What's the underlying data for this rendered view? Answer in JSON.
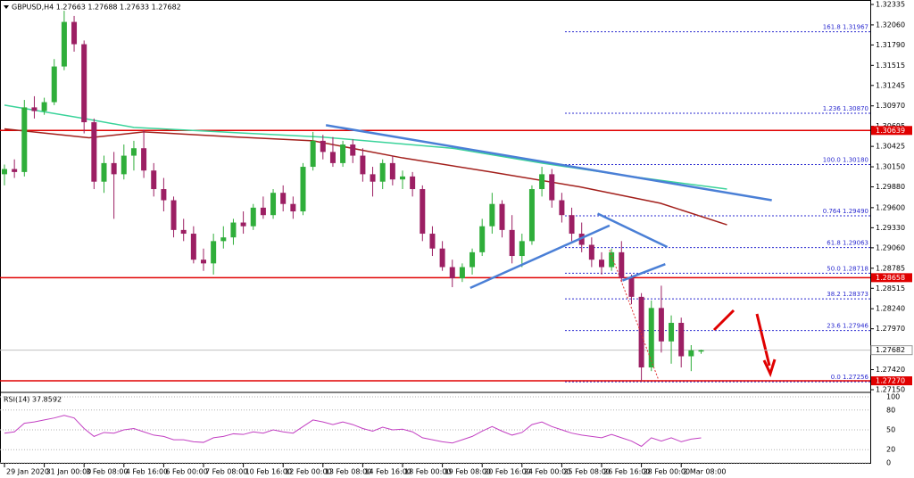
{
  "chart_data": {
    "type": "candlestick",
    "title": "GBPUSD,H4  1.27663 1.27688 1.27633 1.27682",
    "categories": [
      "29 Jan 2020",
      null,
      null,
      null,
      "31 Jan 00:00",
      null,
      null,
      null,
      "3 Feb 08:00",
      null,
      null,
      null,
      "4 Feb 16:00",
      null,
      null,
      null,
      "6 Feb 00:00",
      null,
      null,
      null,
      "7 Feb 08:00",
      null,
      null,
      null,
      "10 Feb 16:00",
      null,
      null,
      null,
      "12 Feb 00:00",
      null,
      null,
      null,
      "13 Feb 08:00",
      null,
      null,
      null,
      "14 Feb 16:00",
      null,
      null,
      null,
      "18 Feb 00:00",
      null,
      null,
      null,
      "19 Feb 08:00",
      null,
      null,
      null,
      "20 Feb 16:00",
      null,
      null,
      null,
      "24 Feb 00:00",
      null,
      null,
      null,
      "25 Feb 08:00",
      null,
      null,
      null,
      "26 Feb 16:00",
      null,
      null,
      null,
      "28 Feb 00:00",
      null,
      null,
      null,
      "2 Mar 08:00",
      null,
      null
    ],
    "open": [
      1.3005,
      1.3012,
      1.3008,
      1.3095,
      1.309,
      1.3102,
      1.315,
      1.321,
      1.318,
      1.3075,
      1.2995,
      1.302,
      1.3005,
      1.303,
      1.304,
      1.301,
      1.2985,
      1.297,
      1.293,
      1.2925,
      1.289,
      1.2885,
      1.2915,
      1.292,
      1.294,
      1.2935,
      1.296,
      1.295,
      1.298,
      1.2965,
      1.2955,
      1.3015,
      1.305,
      1.3035,
      1.302,
      1.3045,
      1.303,
      1.3005,
      1.2995,
      1.302,
      1.2998,
      1.3002,
      1.2985,
      1.2925,
      1.2905,
      1.288,
      1.2865,
      1.288,
      1.29,
      1.2935,
      1.2965,
      1.293,
      1.2895,
      1.2915,
      1.2985,
      1.3005,
      1.297,
      1.295,
      1.2925,
      1.291,
      1.289,
      1.288,
      1.29,
      1.2865,
      1.284,
      1.2745,
      1.2825,
      1.278,
      1.2805,
      1.276,
      1.27663
    ],
    "high": [
      1.3018,
      1.3025,
      1.3105,
      1.311,
      1.3108,
      1.316,
      1.3225,
      1.3218,
      1.3185,
      1.308,
      1.303,
      1.3035,
      1.3045,
      1.305,
      1.3065,
      1.302,
      1.3,
      1.2975,
      1.2945,
      1.2935,
      1.2905,
      1.2925,
      1.2935,
      1.2945,
      1.2955,
      1.2965,
      1.2975,
      1.2985,
      1.299,
      1.2975,
      1.302,
      1.3062,
      1.3058,
      1.3055,
      1.305,
      1.3052,
      1.304,
      1.3015,
      1.3025,
      1.303,
      1.301,
      1.3008,
      1.299,
      1.2935,
      1.2915,
      1.289,
      1.2885,
      1.2905,
      1.2945,
      1.298,
      1.297,
      1.295,
      1.2925,
      1.299,
      1.3015,
      1.3012,
      1.298,
      1.296,
      1.294,
      1.292,
      1.29,
      1.2905,
      1.2915,
      1.287,
      1.2845,
      1.2835,
      1.2855,
      1.2815,
      1.2812,
      1.2775,
      1.27688
    ],
    "low": [
      1.299,
      1.3,
      1.3002,
      1.308,
      1.3085,
      1.3098,
      1.3145,
      1.317,
      1.306,
      1.2985,
      1.298,
      1.2945,
      1.2998,
      1.301,
      1.3,
      1.2975,
      1.2955,
      1.292,
      1.2915,
      1.2885,
      1.2875,
      1.287,
      1.2905,
      1.291,
      1.2925,
      1.293,
      1.2945,
      1.2945,
      1.2955,
      1.2945,
      1.295,
      1.301,
      1.3025,
      1.3015,
      1.3015,
      1.302,
      1.2995,
      1.2975,
      1.2985,
      1.299,
      1.2985,
      1.2975,
      1.2915,
      1.2895,
      1.2875,
      1.2853,
      1.286,
      1.287,
      1.2895,
      1.2925,
      1.292,
      1.2885,
      1.288,
      1.291,
      1.2975,
      1.296,
      1.294,
      1.2915,
      1.29,
      1.288,
      1.287,
      1.2875,
      1.286,
      1.283,
      1.2727,
      1.274,
      1.2765,
      1.275,
      1.2745,
      1.274,
      1.27633
    ],
    "close": [
      1.3012,
      1.3008,
      1.3095,
      1.309,
      1.3102,
      1.315,
      1.321,
      1.318,
      1.3075,
      1.2995,
      1.302,
      1.3005,
      1.303,
      1.304,
      1.301,
      1.2985,
      1.297,
      1.293,
      1.2925,
      1.289,
      1.2885,
      1.2915,
      1.292,
      1.294,
      1.2935,
      1.296,
      1.295,
      1.298,
      1.2965,
      1.2955,
      1.3015,
      1.305,
      1.3035,
      1.302,
      1.3045,
      1.303,
      1.3005,
      1.2995,
      1.302,
      1.2998,
      1.3002,
      1.2985,
      1.2925,
      1.2905,
      1.288,
      1.2865,
      1.288,
      1.29,
      1.2935,
      1.2965,
      1.293,
      1.2895,
      1.2915,
      1.2985,
      1.3005,
      1.297,
      1.295,
      1.2925,
      1.291,
      1.289,
      1.288,
      1.29,
      1.2865,
      1.284,
      1.2745,
      1.2825,
      1.278,
      1.2805,
      1.276,
      1.2768,
      1.27682
    ],
    "up_color": "#2fae3a",
    "down_color": "#9c1f63",
    "ylim": [
      1.27114,
      1.32395
    ],
    "yticks": [
      1.32335,
      {
        "value": 1.3206,
        "label": "1.32060"
      },
      {
        "value": 1.3179,
        "label": "1.31790"
      },
      1.31515,
      1.31245,
      {
        "value": 1.3097,
        "label": "1.30970"
      },
      1.30695,
      1.30425,
      {
        "value": 1.3015,
        "label": "1.30150"
      },
      {
        "value": 1.2988,
        "label": "1.29880"
      },
      {
        "value": 1.296,
        "label": "1.29600"
      },
      {
        "value": 1.2933,
        "label": "1.29330"
      },
      {
        "value": 1.2906,
        "label": "1.29060"
      },
      1.28785,
      1.28515,
      {
        "value": 1.2824,
        "label": "1.28240"
      },
      {
        "value": 1.2797,
        "label": "1.27970"
      },
      1.27695,
      {
        "value": 1.2742,
        "label": "1.27420"
      },
      {
        "value": 1.2715,
        "label": "1.27150"
      }
    ],
    "moving_averages": [
      {
        "color": "#3ad39a",
        "x": [
          0,
          8,
          13,
          32,
          45,
          54,
          63,
          72.6
        ],
        "values": [
          1.3098,
          1.308,
          1.3068,
          1.3055,
          1.304,
          1.302,
          1.3002,
          1.2985
        ]
      },
      {
        "color": "#a3201c",
        "x": [
          0,
          8.5,
          14,
          22,
          31,
          40,
          48.9,
          57.8,
          65.9,
          72.6
        ],
        "values": [
          1.3066,
          1.3054,
          1.3062,
          1.3056,
          1.305,
          1.3027,
          1.3008,
          1.2988,
          1.2966,
          1.2937
        ]
      }
    ],
    "trendlines": [
      {
        "color": "#4a7fd6",
        "x": [
          32.3,
          77.1
        ],
        "values": [
          1.3071,
          1.297
        ]
      },
      {
        "color": "#4a7fd6",
        "x": [
          46.8,
          60.8
        ],
        "values": [
          1.2852,
          1.2936
        ]
      },
      {
        "color": "#4a7fd6",
        "x": [
          59.6,
          66.6
        ],
        "values": [
          1.2952,
          1.2907
        ]
      },
      {
        "color": "#4a7fd6",
        "x": [
          62.1,
          66.4
        ],
        "values": [
          1.2862,
          1.2884
        ]
      },
      {
        "color": "#e03030",
        "x": [
          60.8,
          65.7
        ],
        "values": [
          1.2903,
          1.2729
        ],
        "dashed": true
      }
    ],
    "fib_color": "#2b2bd0",
    "fib_levels": [
      {
        "value": 1.31967,
        "label": "161.8 1.31967"
      },
      {
        "value": 1.3087,
        "label": "1.236 1.30870"
      },
      {
        "value": 1.3018,
        "label": "100.0 1.30180"
      },
      {
        "value": 1.2949,
        "label": "0.764 1.29490"
      },
      {
        "value": 1.29063,
        "label": "61.8 1.29063"
      },
      {
        "value": 1.28718,
        "label": "50.0 1.28718"
      },
      {
        "value": 1.28373,
        "label": "38.2 1.28373"
      },
      {
        "value": 1.27946,
        "label": "23.6 1.27946"
      },
      {
        "value": 1.27256,
        "label": "0.0 1.27256"
      }
    ],
    "level_color": "#e00000",
    "levels": [
      1.30639,
      1.28658,
      {
        "value": 1.2727,
        "label": "1.27270"
      }
    ],
    "current_price": 1.27682,
    "rsi": {
      "title": "RSI(14) 37.8592",
      "color": "#c23fc2",
      "ylim": [
        0,
        100
      ],
      "yticks": [
        100,
        80,
        50,
        20,
        0
      ],
      "values": [
        45,
        47,
        60,
        62,
        65,
        68,
        72,
        68,
        52,
        40,
        46,
        45,
        50,
        52,
        47,
        42,
        40,
        35,
        35,
        32,
        31,
        38,
        40,
        44,
        43,
        47,
        45,
        50,
        47,
        45,
        55,
        65,
        62,
        58,
        62,
        58,
        52,
        48,
        54,
        50,
        51,
        47,
        38,
        35,
        32,
        30,
        35,
        40,
        48,
        55,
        48,
        42,
        46,
        58,
        62,
        55,
        50,
        45,
        42,
        40,
        38,
        43,
        38,
        33,
        25,
        38,
        33,
        38,
        32,
        36,
        37.8592
      ]
    }
  }
}
